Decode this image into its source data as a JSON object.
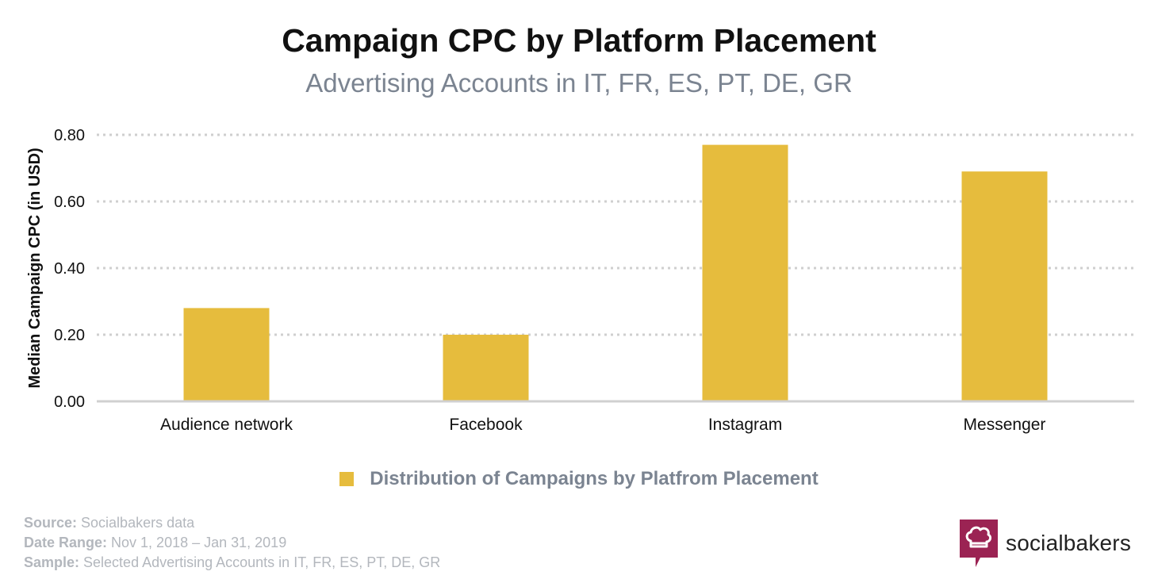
{
  "header": {
    "title": "Campaign CPC by Platform Placement",
    "subtitle": "Advertising Accounts in IT, FR, ES, PT, DE, GR"
  },
  "chart_data": {
    "type": "bar",
    "title": "Campaign CPC by Platform Placement",
    "subtitle": "Advertising Accounts in IT, FR, ES, PT, DE, GR",
    "xlabel": "",
    "ylabel": "Median Campaign CPC (in USD)",
    "categories": [
      "Audience network",
      "Facebook",
      "Instagram",
      "Messenger"
    ],
    "series": [
      {
        "name": "Distribution of Campaigns by Platfrom Placement",
        "values": [
          0.28,
          0.2,
          0.77,
          0.69
        ],
        "color": "#e6bc3d"
      }
    ],
    "ylim": [
      0,
      0.8
    ],
    "yticks": [
      "0.00",
      "0.20",
      "0.40",
      "0.60",
      "0.80"
    ],
    "grid": true,
    "legend_position": "bottom"
  },
  "footer": {
    "source_label": "Source:",
    "source_value": " Socialbakers data",
    "date_label": "Date Range:",
    "date_value": " Nov 1, 2018  – Jan 31, 2019",
    "sample_label": "Sample:",
    "sample_value": " Selected Advertising Accounts in IT, FR, ES, PT, DE, GR"
  },
  "logo": {
    "text": "socialbakers",
    "icon": "chef-hat-icon",
    "color": "#9b2353"
  }
}
